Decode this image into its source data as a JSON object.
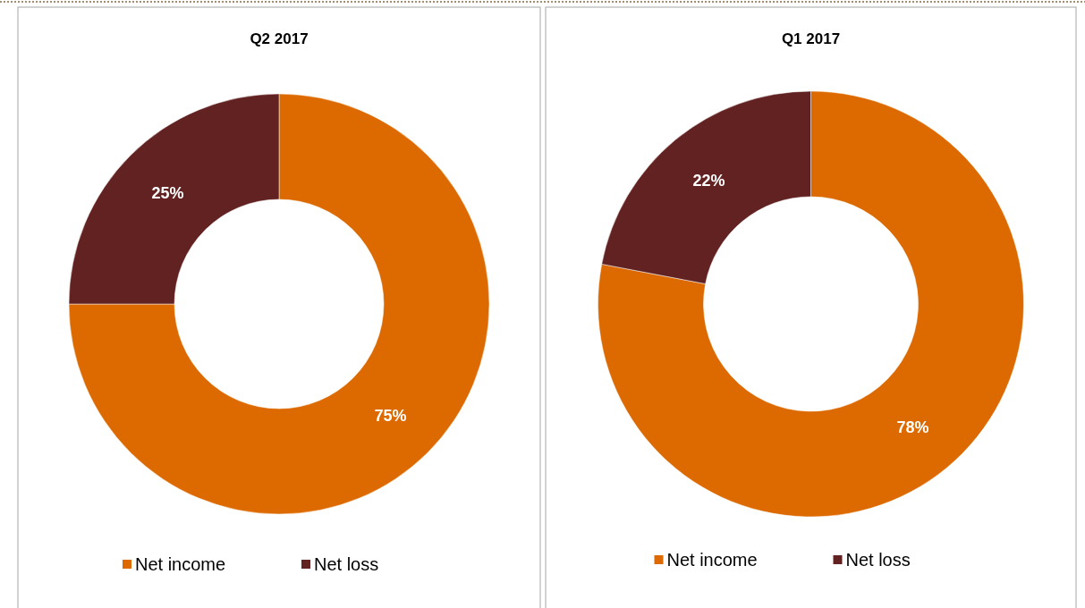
{
  "chart_data": [
    {
      "type": "donut",
      "title": "Q2 2017",
      "categories": [
        "Net income",
        "Net loss"
      ],
      "values": [
        75,
        25
      ],
      "colors": [
        "#dc6a00",
        "#622221"
      ],
      "value_labels": [
        "75%",
        "25%"
      ],
      "legend": "bottom"
    },
    {
      "type": "donut",
      "title": "Q1 2017",
      "categories": [
        "Net income",
        "Net loss"
      ],
      "values": [
        78,
        22
      ],
      "colors": [
        "#dc6a00",
        "#622221"
      ],
      "value_labels": [
        "78%",
        "22%"
      ],
      "legend": "bottom"
    }
  ]
}
